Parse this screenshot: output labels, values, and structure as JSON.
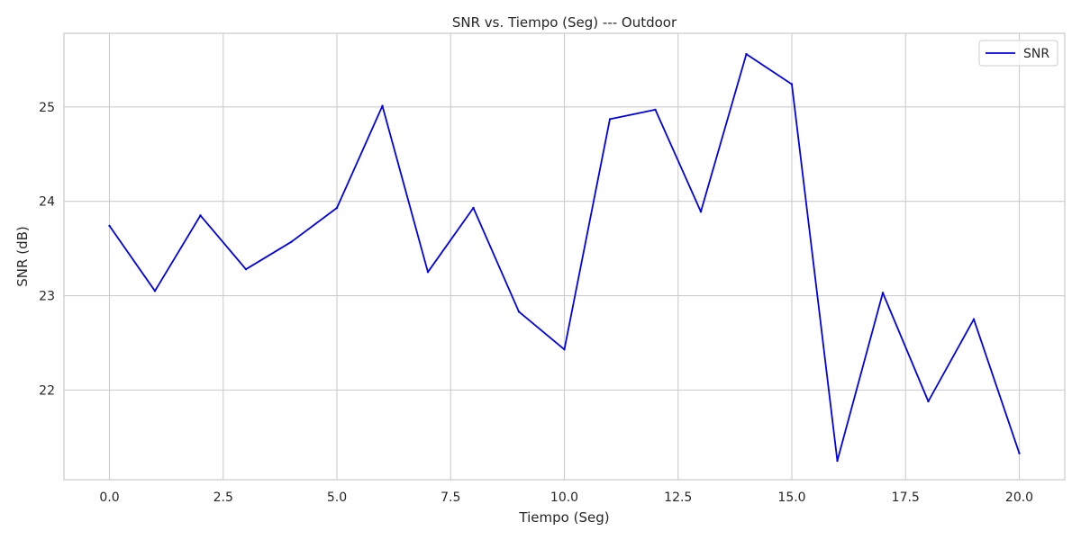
{
  "chart_data": {
    "type": "line",
    "title": "SNR vs. Tiempo (Seg) --- Outdoor",
    "xlabel": "Tiempo (Seg)",
    "ylabel": "SNR (dB)",
    "xlim": [
      -1.0,
      21.0
    ],
    "ylim": [
      21.05,
      25.78
    ],
    "x_ticks": [
      0.0,
      2.5,
      5.0,
      7.5,
      10.0,
      12.5,
      15.0,
      17.5,
      20.0
    ],
    "x_tick_labels": [
      "0.0",
      "2.5",
      "5.0",
      "7.5",
      "10.0",
      "12.5",
      "15.0",
      "17.5",
      "20.0"
    ],
    "y_ticks": [
      22,
      23,
      24,
      25
    ],
    "y_tick_labels": [
      "22",
      "23",
      "24",
      "25"
    ],
    "grid": true,
    "legend_position": "top-right",
    "series": [
      {
        "name": "SNR",
        "color": "#0000ee",
        "x": [
          0,
          1,
          2,
          3,
          4,
          5,
          6,
          7,
          8,
          9,
          10,
          11,
          12,
          13,
          14,
          15,
          16,
          17,
          18,
          19,
          20
        ],
        "y": [
          23.74,
          23.05,
          23.85,
          23.28,
          23.57,
          23.93,
          25.01,
          23.25,
          23.93,
          22.83,
          22.43,
          24.87,
          24.97,
          23.89,
          25.56,
          25.24,
          21.25,
          23.03,
          21.88,
          22.75,
          21.33
        ]
      }
    ]
  }
}
